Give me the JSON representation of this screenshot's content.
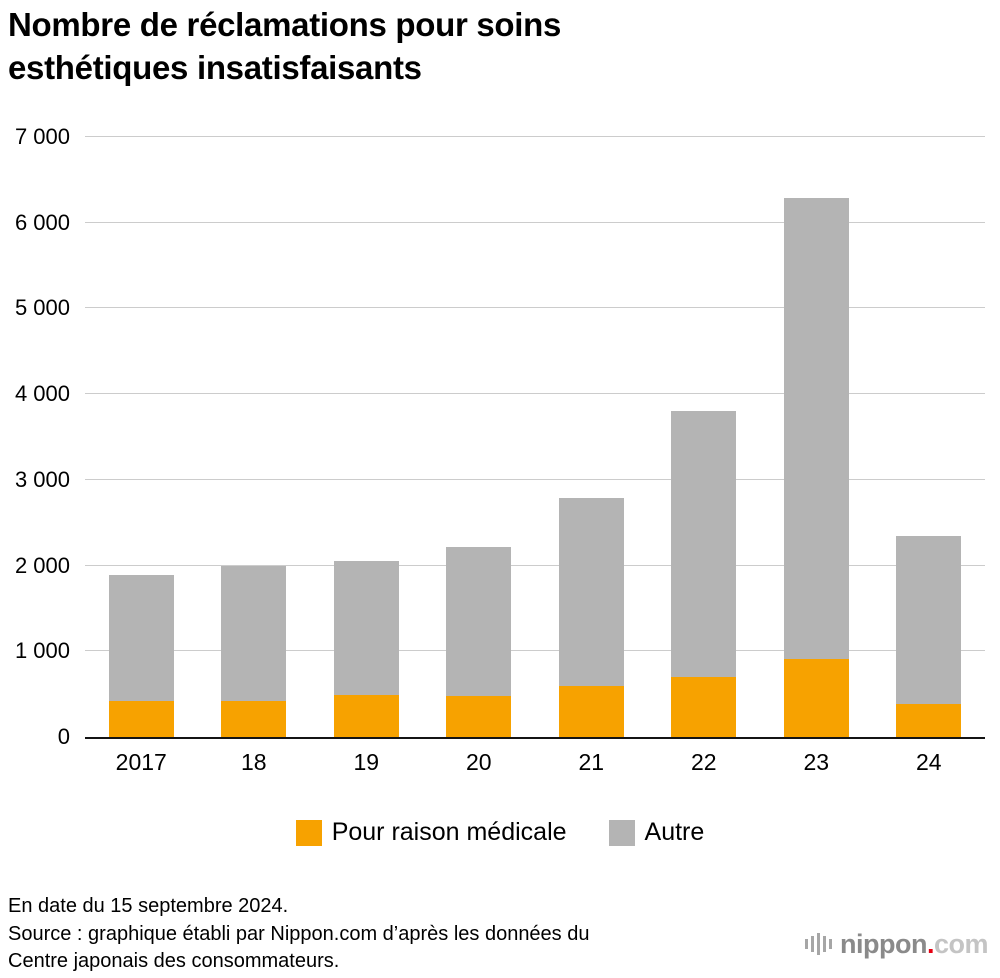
{
  "title": {
    "line1": "Nombre de réclamations pour soins",
    "line2": "esthétiques insatisfaisants"
  },
  "chart_data": {
    "type": "bar",
    "stacked": true,
    "title": "Nombre de réclamations pour soins esthétiques insatisfaisants",
    "categories": [
      "2017",
      "18",
      "19",
      "20",
      "21",
      "22",
      "23",
      "24"
    ],
    "series": [
      {
        "name": "Pour raison médicale",
        "color": "#F7A200",
        "values": [
          420,
          420,
          490,
          480,
          600,
          700,
          910,
          380
        ]
      },
      {
        "name": "Autre",
        "color": "#B4B4B4",
        "values": [
          1470,
          1580,
          1560,
          1740,
          2190,
          3100,
          5380,
          1960
        ]
      }
    ],
    "stacked_totals": [
      1890,
      2000,
      2050,
      2220,
      2790,
      3800,
      6290,
      2340
    ],
    "ylim": [
      0,
      7000
    ],
    "ytick_step": 1000,
    "ytick_labels": [
      "0",
      "1 000",
      "2 000",
      "3 000",
      "4 000",
      "5 000",
      "6 000",
      "7 000"
    ],
    "grid": true,
    "legend_position": "bottom"
  },
  "footer": {
    "line1": "En date du 15 septembre 2024.",
    "line2": "Source : graphique établi par Nippon.com d’après les données du",
    "line3": "Centre japonais des consommateurs."
  },
  "logo": {
    "name": "nippon",
    "dot": ".",
    "tld": "com",
    "dot_color": "#E60012"
  }
}
